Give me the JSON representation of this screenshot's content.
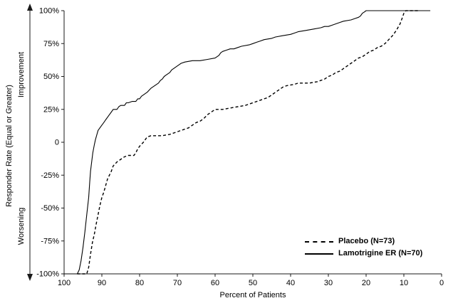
{
  "colors": {
    "background": "#ffffff",
    "axis": "#1a1a1a",
    "text": "#000000"
  },
  "chart_data": {
    "type": "line",
    "xlabel": "Percent of Patients",
    "ylabel": "Responder Rate (Equal or Greater)",
    "ylabel_upper": "Improvement",
    "ylabel_lower": "Worsening",
    "x_range": [
      100,
      0
    ],
    "y_range": [
      -100,
      100
    ],
    "x_reversed": true,
    "grid": false,
    "legend_position": "inside-lower-right",
    "x_ticks": [
      100,
      90,
      80,
      70,
      60,
      50,
      40,
      30,
      20,
      10,
      0
    ],
    "y_tick_values": [
      100,
      75,
      50,
      25,
      0,
      -25,
      -50,
      -75,
      -100
    ],
    "y_tick_labels": [
      "100%",
      "75%",
      "50%",
      "25%",
      "0",
      "-25%",
      "-50%",
      "-75%",
      "-100%"
    ],
    "series": [
      {
        "name": "Placebo (N=73)",
        "style": "dashed",
        "color": "#000000",
        "points": [
          [
            96.5,
            -100
          ],
          [
            94,
            -100
          ],
          [
            93.5,
            -95
          ],
          [
            93,
            -85
          ],
          [
            92.5,
            -76
          ],
          [
            92,
            -70
          ],
          [
            91.5,
            -62
          ],
          [
            91,
            -55
          ],
          [
            90.5,
            -48
          ],
          [
            90,
            -42
          ],
          [
            89.5,
            -38
          ],
          [
            89,
            -33
          ],
          [
            88.5,
            -28
          ],
          [
            88,
            -25
          ],
          [
            87.5,
            -22
          ],
          [
            87,
            -18
          ],
          [
            86,
            -15
          ],
          [
            85,
            -13
          ],
          [
            84,
            -11
          ],
          [
            83,
            -10
          ],
          [
            81.5,
            -10
          ],
          [
            81,
            -8
          ],
          [
            80.5,
            -5
          ],
          [
            80,
            -3
          ],
          [
            79,
            0
          ],
          [
            78.5,
            2
          ],
          [
            78,
            4
          ],
          [
            77,
            5
          ],
          [
            74,
            5
          ],
          [
            72,
            6
          ],
          [
            70,
            8
          ],
          [
            69,
            9
          ],
          [
            68,
            10
          ],
          [
            67,
            11
          ],
          [
            66,
            13
          ],
          [
            65,
            15
          ],
          [
            64,
            16
          ],
          [
            63,
            18
          ],
          [
            62,
            21
          ],
          [
            61,
            23
          ],
          [
            60,
            25
          ],
          [
            58,
            25
          ],
          [
            56,
            26
          ],
          [
            54,
            27
          ],
          [
            52,
            28
          ],
          [
            50,
            30
          ],
          [
            48,
            32
          ],
          [
            47,
            33
          ],
          [
            46,
            34
          ],
          [
            45,
            36
          ],
          [
            44,
            38
          ],
          [
            43,
            40
          ],
          [
            42,
            42
          ],
          [
            41,
            43
          ],
          [
            39,
            44
          ],
          [
            38,
            45
          ],
          [
            35,
            45
          ],
          [
            33,
            46
          ],
          [
            32,
            47
          ],
          [
            31,
            48
          ],
          [
            30,
            50
          ],
          [
            29,
            51
          ],
          [
            28,
            53
          ],
          [
            27,
            54
          ],
          [
            26,
            56
          ],
          [
            25,
            58
          ],
          [
            24,
            60
          ],
          [
            23,
            62
          ],
          [
            22,
            64
          ],
          [
            21,
            65
          ],
          [
            20,
            67
          ],
          [
            19,
            69
          ],
          [
            18,
            70
          ],
          [
            17,
            72
          ],
          [
            16,
            73
          ],
          [
            15,
            75
          ],
          [
            14,
            78
          ],
          [
            13,
            81
          ],
          [
            12,
            85
          ],
          [
            11,
            90
          ],
          [
            10.5,
            94
          ],
          [
            10,
            98
          ],
          [
            9.5,
            100
          ],
          [
            6,
            100
          ]
        ]
      },
      {
        "name": "Lamotrigine ER (N=70)",
        "style": "solid",
        "color": "#000000",
        "points": [
          [
            100,
            -100
          ],
          [
            96.5,
            -100
          ],
          [
            96,
            -97
          ],
          [
            95.5,
            -90
          ],
          [
            95,
            -80
          ],
          [
            94.5,
            -68
          ],
          [
            94,
            -55
          ],
          [
            93.5,
            -42
          ],
          [
            93.2,
            -30
          ],
          [
            93,
            -22
          ],
          [
            92.7,
            -15
          ],
          [
            92.4,
            -8
          ],
          [
            92,
            -2
          ],
          [
            91.7,
            2
          ],
          [
            91.3,
            6
          ],
          [
            91,
            9
          ],
          [
            90.5,
            11
          ],
          [
            90,
            13
          ],
          [
            89.5,
            15
          ],
          [
            89,
            17
          ],
          [
            88.5,
            19
          ],
          [
            88,
            21
          ],
          [
            87.5,
            23
          ],
          [
            87,
            25
          ],
          [
            86,
            25
          ],
          [
            85.5,
            27
          ],
          [
            85,
            28
          ],
          [
            84,
            28
          ],
          [
            83.5,
            30
          ],
          [
            83,
            30
          ],
          [
            82,
            31
          ],
          [
            81,
            31
          ],
          [
            80.5,
            33
          ],
          [
            80,
            33
          ],
          [
            79.5,
            35
          ],
          [
            79,
            36
          ],
          [
            78,
            38
          ],
          [
            77,
            41
          ],
          [
            76,
            43
          ],
          [
            75,
            45
          ],
          [
            74.5,
            47
          ],
          [
            74,
            48
          ],
          [
            73.5,
            50
          ],
          [
            73,
            51
          ],
          [
            72,
            53
          ],
          [
            71.5,
            55
          ],
          [
            71,
            56
          ],
          [
            70,
            58
          ],
          [
            69.5,
            59
          ],
          [
            69,
            60
          ],
          [
            68,
            61
          ],
          [
            66,
            62
          ],
          [
            64,
            62
          ],
          [
            62,
            63
          ],
          [
            60,
            64
          ],
          [
            59,
            66
          ],
          [
            58.5,
            68
          ],
          [
            58,
            69
          ],
          [
            57,
            70
          ],
          [
            56,
            71
          ],
          [
            55,
            71
          ],
          [
            54,
            72
          ],
          [
            53,
            73
          ],
          [
            51,
            74
          ],
          [
            50,
            75
          ],
          [
            49,
            76
          ],
          [
            48,
            77
          ],
          [
            47,
            78
          ],
          [
            45,
            79
          ],
          [
            44,
            80
          ],
          [
            42,
            81
          ],
          [
            40,
            82
          ],
          [
            39,
            83
          ],
          [
            38,
            84
          ],
          [
            36,
            85
          ],
          [
            34,
            86
          ],
          [
            32,
            87
          ],
          [
            31,
            88
          ],
          [
            30,
            88
          ],
          [
            29,
            89
          ],
          [
            28,
            90
          ],
          [
            27,
            91
          ],
          [
            26,
            92
          ],
          [
            24,
            93
          ],
          [
            23,
            94
          ],
          [
            22,
            95
          ],
          [
            21.5,
            96
          ],
          [
            21,
            98
          ],
          [
            20.5,
            99
          ],
          [
            20,
            100
          ],
          [
            3,
            100
          ]
        ]
      }
    ]
  }
}
